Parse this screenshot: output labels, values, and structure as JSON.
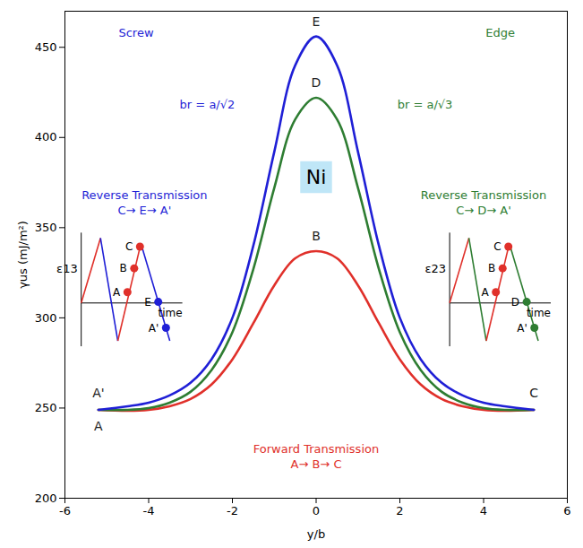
{
  "chart_data": {
    "type": "line",
    "x_label": "y/b",
    "y_label": "γus (mJ/m²)",
    "xlim": [
      -6,
      6
    ],
    "xticks": [
      -6,
      -4,
      -2,
      0,
      2,
      4,
      6
    ],
    "ylim": [
      200,
      470
    ],
    "yticks": [
      200,
      250,
      300,
      350,
      400,
      450
    ],
    "grid": false,
    "x": [
      -5.2,
      -4.5,
      -4,
      -3.5,
      -3,
      -2.5,
      -2,
      -1.5,
      -1,
      -0.5,
      0,
      0.5,
      1,
      1.5,
      2,
      2.5,
      3,
      3.5,
      4,
      4.5,
      5.2
    ],
    "series": [
      {
        "name": "A→ B→ C",
        "color": "#e0302a",
        "values": [
          249,
          248.5,
          249,
          251,
          255,
          263,
          277,
          297,
          318,
          333,
          337,
          333,
          318,
          297,
          277,
          263,
          255,
          251,
          249,
          248.5,
          249
        ]
      },
      {
        "name": "C→ D→ A'",
        "color": "#2e7d32",
        "values": [
          249,
          249,
          250,
          253,
          259,
          271,
          292,
          327,
          372,
          410,
          422,
          410,
          372,
          327,
          292,
          271,
          259,
          253,
          250,
          249,
          249
        ]
      },
      {
        "name": "C→ E→ A'",
        "color": "#1f1fd6",
        "values": [
          249,
          251,
          253,
          257,
          264,
          277,
          300,
          340,
          392,
          440,
          456,
          440,
          392,
          340,
          300,
          277,
          264,
          257,
          253,
          251,
          249
        ]
      }
    ],
    "point_labels": [
      {
        "text": "A",
        "x": -5.2,
        "y": 240
      },
      {
        "text": "A'",
        "x": -5.2,
        "y": 258
      },
      {
        "text": "B",
        "x": 0,
        "y": 345
      },
      {
        "text": "C",
        "x": 5.2,
        "y": 258
      },
      {
        "text": "D",
        "x": 0,
        "y": 430
      },
      {
        "text": "E",
        "x": 0,
        "y": 464
      }
    ],
    "annotations": [
      {
        "text": "Screw",
        "x": -4.3,
        "y": 458,
        "series": "C→ E→ A'"
      },
      {
        "text": "Edge",
        "x": 4.4,
        "y": 458,
        "series": "C→ D→ A'"
      },
      {
        "text": "br = a/√2",
        "x": -2.6,
        "y": 418,
        "series": "C→ E→ A'"
      },
      {
        "text": "br = a/√3",
        "x": 2.6,
        "y": 418,
        "series": "C→ D→ A'"
      }
    ],
    "path_labels": [
      {
        "text": "Reverse Transmission",
        "x": -4.1,
        "y": 368,
        "series": "C→ E→ A'"
      },
      {
        "text": "Reverse Transmission",
        "x": 4.0,
        "y": 368,
        "series": "C→ D→ A'"
      },
      {
        "text": "Forward Transmission",
        "x": 0,
        "y": 227,
        "series": "A→ B→ C"
      }
    ],
    "label_box": {
      "text": "Ni",
      "x": 0,
      "y": 378,
      "color": "#bfe6f7"
    },
    "insets": [
      {
        "ylabel": "ε13",
        "xlabel": "time",
        "points": [
          "A",
          "B",
          "C",
          "E",
          "A'"
        ],
        "forward": "A→ B→ C",
        "reverse": "C→ E→ A'"
      },
      {
        "ylabel": "ε23",
        "xlabel": "time",
        "points": [
          "A",
          "B",
          "C",
          "D",
          "A'"
        ],
        "forward": "A→ B→ C",
        "reverse": "C→ D→ A'"
      }
    ]
  }
}
